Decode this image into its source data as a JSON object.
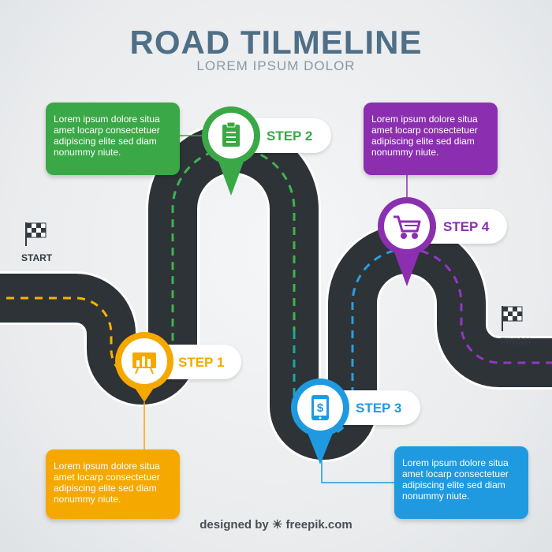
{
  "header": {
    "title": "ROAD TILMELINE",
    "subtitle": "LOREM IPSUM DOLOR"
  },
  "flags": {
    "start": "START",
    "finish": "FINISH"
  },
  "steps": [
    {
      "label": "STEP 1",
      "color": "#f5a800",
      "icon": "chart-icon",
      "text": "Lorem ipsum dolore situa amet locarp consectetuer adipiscing elite sed diam nonummy niute."
    },
    {
      "label": "STEP 2",
      "color": "#3aa846",
      "icon": "clipboard-icon",
      "text": "Lorem ipsum dolore situa amet locarp consectetuer adipiscing elite sed diam nonummy niute."
    },
    {
      "label": "STEP 3",
      "color": "#1f9ae0",
      "icon": "smartphone-dollar-icon",
      "text": "Lorem ipsum dolore situa amet locarp consectetuer adipiscing elite sed diam nonummy niute."
    },
    {
      "label": "STEP 4",
      "color": "#8b2fb0",
      "icon": "shopping-cart-icon",
      "text": "Lorem ipsum dolore situa amet locarp consectetuer adipiscing elite sed diam nonummy niute."
    }
  ],
  "footer": {
    "text": "designed by ☀ freepik.com"
  }
}
